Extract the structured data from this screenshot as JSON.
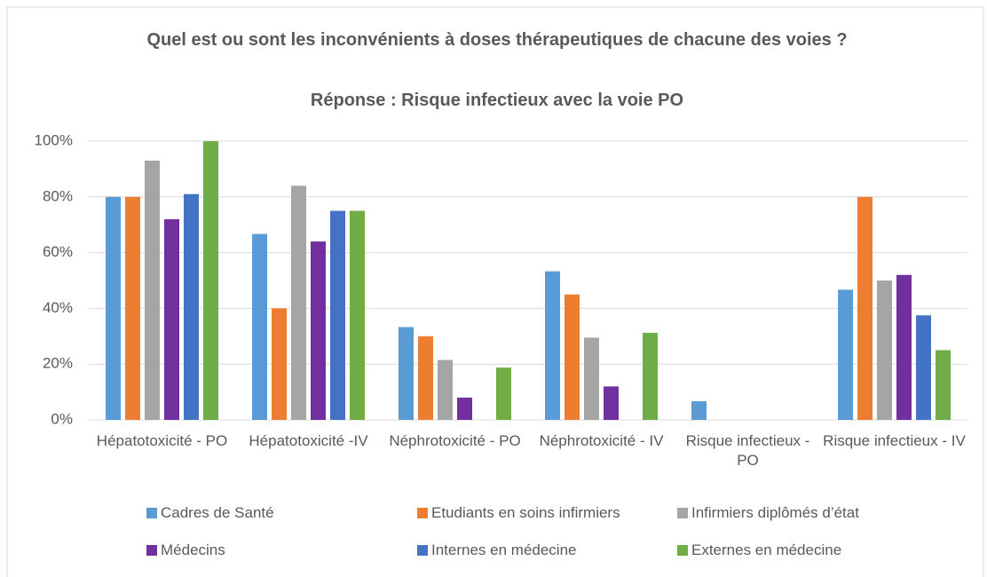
{
  "chart_data": {
    "type": "bar",
    "title": "Quel est ou sont les inconvénients à doses thérapeutiques de chacune des voies ?",
    "subtitle": "Réponse : Risque infectieux avec la voie PO",
    "categories": [
      "Hépatotoxicité - PO",
      "Hépatotoxicité -IV",
      "Néphrotoxicité - PO",
      "Néphrotoxicité - IV",
      "Risque infectieux - PO",
      "Risque infectieux - IV"
    ],
    "series": [
      {
        "name": "Cadres de Santé",
        "color": "#5b9bd5",
        "values": [
          80,
          66.7,
          33.3,
          53.3,
          6.7,
          46.7
        ]
      },
      {
        "name": "Etudiants en soins infirmiers",
        "color": "#ed7d31",
        "values": [
          80,
          40,
          30,
          45,
          0,
          80
        ]
      },
      {
        "name": "Infirmiers diplômés d’état",
        "color": "#a5a5a5",
        "values": [
          93,
          84,
          21.5,
          29.5,
          0,
          50
        ]
      },
      {
        "name": "Médecins",
        "color": "#7030a0",
        "values": [
          72,
          64,
          8,
          12,
          0,
          52
        ]
      },
      {
        "name": "Internes en médecine",
        "color": "#4472c4",
        "values": [
          81,
          75,
          0,
          0,
          0,
          37.5
        ]
      },
      {
        "name": "Externes en médecine",
        "color": "#70ad47",
        "values": [
          100,
          75,
          18.75,
          31.25,
          0,
          25
        ]
      }
    ],
    "ylim": [
      0,
      100
    ],
    "yticks": [
      {
        "value": 0,
        "label": "0%"
      },
      {
        "value": 20,
        "label": "20%"
      },
      {
        "value": 40,
        "label": "40%"
      },
      {
        "value": 60,
        "label": "60%"
      },
      {
        "value": 80,
        "label": "80%"
      },
      {
        "value": 100,
        "label": "100%"
      }
    ],
    "grid": true,
    "legend": "bottom"
  }
}
